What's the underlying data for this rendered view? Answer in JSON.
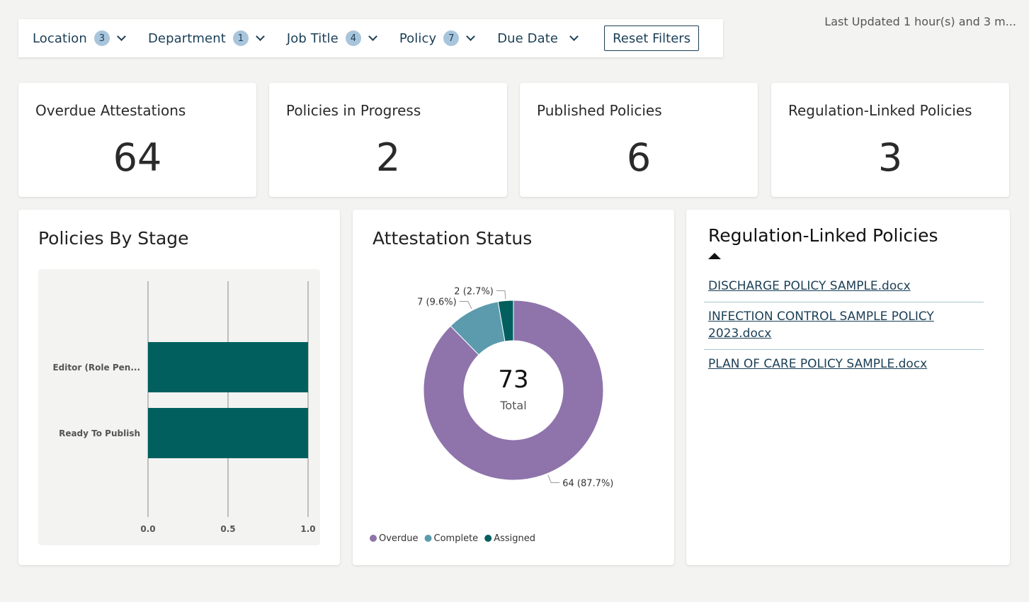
{
  "filters": [
    {
      "label": "Location",
      "count": "3"
    },
    {
      "label": "Department",
      "count": "1"
    },
    {
      "label": "Job Title",
      "count": "4"
    },
    {
      "label": "Policy",
      "count": "7"
    },
    {
      "label": "Due Date",
      "count": ""
    }
  ],
  "reset_label": "Reset Filters",
  "last_updated": "Last Updated 1 hour(s) and 3 m...",
  "kpis": [
    {
      "title": "Overdue Attestations",
      "value": "64"
    },
    {
      "title": "Policies in Progress",
      "value": "2"
    },
    {
      "title": "Published Policies",
      "value": "6"
    },
    {
      "title": "Regulation-Linked Policies",
      "value": "3"
    }
  ],
  "policies_by_stage": {
    "title": "Policies By Stage",
    "chart_data": {
      "type": "bar",
      "orientation": "horizontal",
      "categories": [
        "Editor (Role Pen...",
        "Ready To Publish"
      ],
      "values": [
        1,
        1
      ],
      "xlim": [
        0,
        1
      ],
      "ticks": [
        "0.0",
        "0.5",
        "1.0"
      ],
      "grid": true,
      "color": "#01605e"
    }
  },
  "attestation_status": {
    "title": "Attestation Status",
    "center_value": "73",
    "center_label": "Total",
    "chart_data": {
      "type": "pie",
      "donut": true,
      "slices": [
        {
          "name": "Overdue",
          "value": 64,
          "label": "64 (87.7%)",
          "color": "#8e74ab"
        },
        {
          "name": "Complete",
          "value": 7,
          "label": "7 (9.6%)",
          "color": "#5b9bad"
        },
        {
          "name": "Assigned",
          "value": 2,
          "label": "2 (2.7%)",
          "color": "#01605e"
        }
      ],
      "legend": "bottom-left"
    }
  },
  "regulation_linked": {
    "title": "Regulation-Linked Policies",
    "items": [
      {
        "line1": "DISCHARGE POLICY SAMPLE.docx",
        "line2": ""
      },
      {
        "line1": "INFECTION CONTROL SAMPLE POLICY",
        "line2": "2023.docx"
      },
      {
        "line1": "PLAN OF CARE POLICY SAMPLE.docx",
        "line2": ""
      }
    ]
  }
}
